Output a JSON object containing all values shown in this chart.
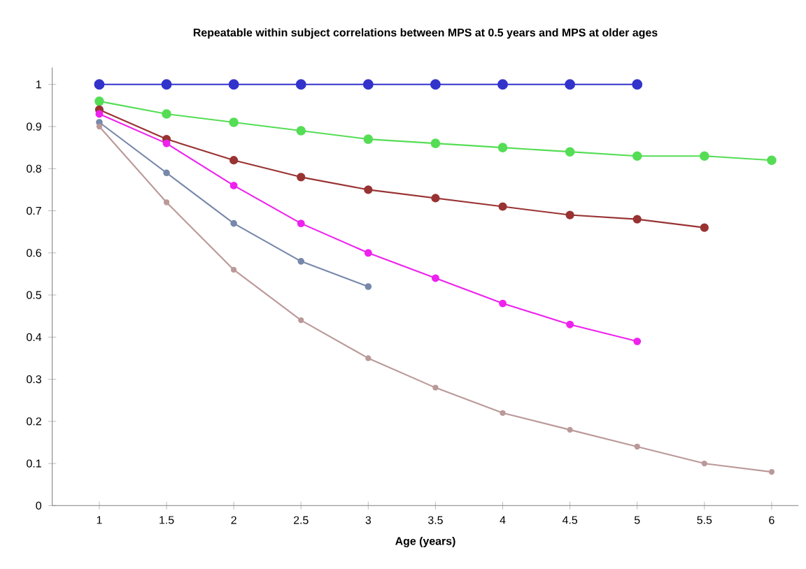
{
  "chart_data": {
    "type": "line",
    "title": "Repeatable within subject correlations between MPS at 0.5 years and MPS at older ages",
    "xlabel": "Age (years)",
    "marker": "circle",
    "line_style": "solid",
    "grid": false,
    "xlim": [
      0.65,
      6.2
    ],
    "ylim": [
      0,
      1.04
    ],
    "xticks": [
      1,
      1.5,
      2,
      2.5,
      3,
      3.5,
      4,
      4.5,
      5,
      5.5,
      6
    ],
    "yticks": [
      0,
      0.1,
      0.2,
      0.3,
      0.4,
      0.5,
      0.6,
      0.7,
      0.8,
      0.9,
      1
    ],
    "series": [
      {
        "color": "#3333cc",
        "x": [
          1,
          1.5,
          2,
          2.5,
          3,
          3.5,
          4,
          4.5,
          5
        ],
        "values": [
          1,
          1,
          1,
          1,
          1,
          1,
          1,
          1,
          1
        ]
      },
      {
        "color": "#55dd55",
        "x": [
          1,
          1.5,
          2,
          2.5,
          3,
          3.5,
          4,
          4.5,
          5,
          5.5,
          6
        ],
        "values": [
          0.96,
          0.93,
          0.91,
          0.89,
          0.87,
          0.86,
          0.85,
          0.84,
          0.83,
          0.83,
          0.82
        ]
      },
      {
        "color": "#993333",
        "x": [
          1,
          1.5,
          2,
          2.5,
          3,
          3.5,
          4,
          4.5,
          5,
          5.5
        ],
        "values": [
          0.94,
          0.87,
          0.82,
          0.78,
          0.75,
          0.73,
          0.71,
          0.69,
          0.68,
          0.66
        ]
      },
      {
        "color": "#ee22ee",
        "x": [
          1,
          1.5,
          2,
          2.5,
          3,
          3.5,
          4,
          4.5,
          5
        ],
        "values": [
          0.93,
          0.86,
          0.76,
          0.67,
          0.6,
          0.54,
          0.48,
          0.43,
          0.39
        ]
      },
      {
        "color": "#7788aa",
        "x": [
          1,
          1.5,
          2,
          2.5,
          3
        ],
        "values": [
          0.91,
          0.79,
          0.67,
          0.58,
          0.52
        ]
      },
      {
        "color": "#bb9999",
        "x": [
          1,
          1.5,
          2,
          2.5,
          3,
          3.5,
          4,
          4.5,
          5,
          5.5,
          6
        ],
        "values": [
          0.9,
          0.72,
          0.56,
          0.44,
          0.35,
          0.28,
          0.22,
          0.18,
          0.14,
          0.1,
          0.08
        ]
      }
    ]
  }
}
